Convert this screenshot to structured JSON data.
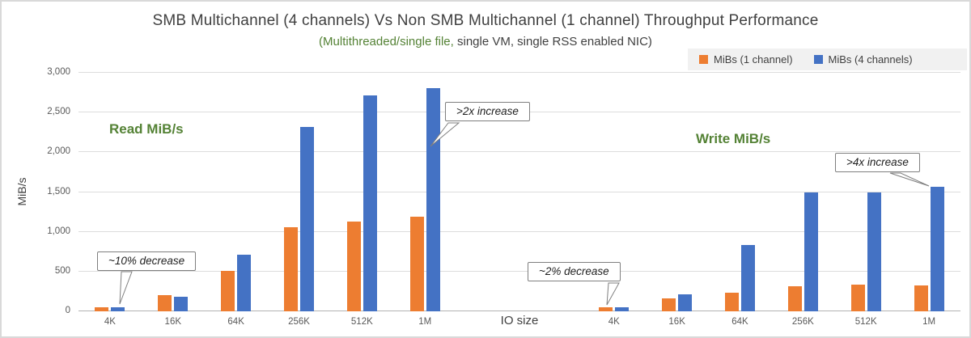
{
  "chart_data": {
    "type": "bar",
    "title": "SMB Multichannel (4 channels) Vs Non SMB Multichannel (1 channel) Throughput Performance",
    "subtitle_green": "(Multithreaded/single file,",
    "subtitle_rest": " single VM, single RSS enabled NIC)",
    "ylabel": "MiB/s",
    "xlabel": "IO size",
    "ylim": [
      0,
      3000
    ],
    "yticks": [
      0,
      500,
      1000,
      1500,
      2000,
      2500,
      3000
    ],
    "ytick_labels": [
      "0",
      "500",
      "1,000",
      "1,500",
      "2,000",
      "2,500",
      "3,000"
    ],
    "grid": true,
    "legend_position": "top-right",
    "legend": [
      {
        "label": "MiBs (1 channel)",
        "color": "#ED7D31"
      },
      {
        "label": "MiBs (4 channels)",
        "color": "#4472C4"
      }
    ],
    "categories": [
      "4K",
      "16K",
      "64K",
      "256K",
      "512K",
      "1M"
    ],
    "groups": [
      {
        "name": "Read",
        "label": "Read MiB/s",
        "series": [
          {
            "name": "MiBs (1 channel)",
            "values": [
              55,
              205,
              510,
              1060,
              1130,
              1190
            ]
          },
          {
            "name": "MiBs (4 channels)",
            "values": [
              50,
              185,
              710,
              2320,
              2715,
              2805
            ]
          }
        ]
      },
      {
        "name": "Write",
        "label": "Write MiB/s",
        "series": [
          {
            "name": "MiBs (1 channel)",
            "values": [
              50,
              165,
              235,
              315,
              335,
              325
            ]
          },
          {
            "name": "MiBs (4 channels)",
            "values": [
              49,
              215,
              835,
              1495,
              1495,
              1565
            ]
          }
        ]
      }
    ],
    "annotations": [
      {
        "text": "~10% decrease",
        "target": "Read 4K"
      },
      {
        "text": ">2x increase",
        "target": "Read 1M (4 channels)"
      },
      {
        "text": "~2% decrease",
        "target": "Write 4K"
      },
      {
        "text": ">4x increase",
        "target": "Write 1M (4 channels)"
      }
    ]
  }
}
